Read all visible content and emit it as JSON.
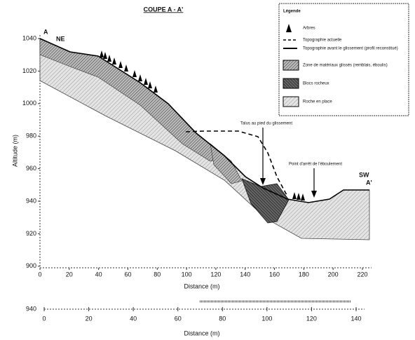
{
  "title": "COUPE A - A'",
  "legend": {
    "title": "Légende",
    "items": [
      "Arbres",
      "Topographie actuelle",
      "Topographie avant le glissement (profil reconstitué)",
      "Zone de matériaux glissés (remblais, éboulis)",
      "Blocs rocheux",
      "Roche en place"
    ]
  },
  "main_axis": {
    "y_label": "Altitude (m)",
    "x_label": "Distance (m)",
    "yticks": [
      "1040",
      "1020",
      "1000",
      "980",
      "960",
      "940",
      "920",
      "900"
    ],
    "xticks": [
      "0",
      "20",
      "40",
      "60",
      "80",
      "100",
      "120",
      "140",
      "160",
      "180",
      "200",
      "220"
    ]
  },
  "labels": {
    "a": "A",
    "ne": "NE",
    "sw": "SW",
    "a_prime": "A'",
    "scarp": "Talus au pied du glissement",
    "stop": "Point d'arrêt de l'éboulement"
  },
  "bottom_axis": {
    "x_label": "Distance (m)",
    "y_tick": "940",
    "xticks": [
      "0",
      "20",
      "40",
      "60",
      "80",
      "100",
      "120",
      "140"
    ]
  }
}
